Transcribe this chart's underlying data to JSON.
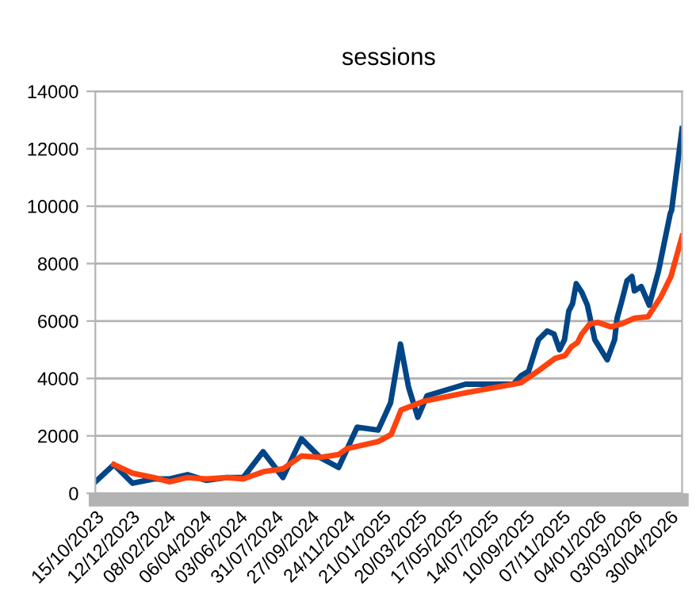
{
  "chart_data": {
    "type": "line",
    "title": "sessions",
    "xlim": [
      "2023-10-15",
      "2026-05-20"
    ],
    "ylim": [
      0,
      14000
    ],
    "yticks": [
      0,
      2000,
      4000,
      6000,
      8000,
      10000,
      12000,
      14000
    ],
    "xticks": [
      {
        "value": "2023-10-15",
        "label": "15/10/2023"
      },
      {
        "value": "2023-12-12",
        "label": "12/12/2023"
      },
      {
        "value": "2024-02-08",
        "label": "08/02/2024"
      },
      {
        "value": "2024-04-06",
        "label": "06/04/2024"
      },
      {
        "value": "2024-06-03",
        "label": "03/06/2024"
      },
      {
        "value": "2024-07-31",
        "label": "31/07/2024"
      },
      {
        "value": "2024-09-27",
        "label": "27/09/2024"
      },
      {
        "value": "2024-11-24",
        "label": "24/11/2024"
      },
      {
        "value": "2025-01-21",
        "label": "21/01/2025"
      },
      {
        "value": "2025-03-20",
        "label": "20/03/2025"
      },
      {
        "value": "2025-05-17",
        "label": "17/05/2025"
      },
      {
        "value": "2025-07-14",
        "label": "14/07/2025"
      },
      {
        "value": "2025-09-10",
        "label": "10/09/2025"
      },
      {
        "value": "2025-11-07",
        "label": "07/11/2025"
      },
      {
        "value": "2026-01-04",
        "label": "04/01/2026"
      },
      {
        "value": "2026-03-03",
        "label": "03/03/2026"
      },
      {
        "value": "2026-04-30",
        "label": "30/04/2026"
      }
    ],
    "grid": "y",
    "legend": false,
    "marker": "none",
    "line_style": "solid",
    "series": [
      {
        "color": "#004586",
        "x": [
          "2023-10-15",
          "2023-11-14",
          "2023-12-14",
          "2024-01-17",
          "2024-02-12",
          "2024-03-12",
          "2024-04-11",
          "2024-05-15",
          "2024-06-10",
          "2024-07-12",
          "2024-08-13",
          "2024-09-12",
          "2024-10-12",
          "2024-11-11",
          "2024-12-11",
          "2025-01-14",
          "2025-02-03",
          "2025-02-19",
          "2025-03-04",
          "2025-03-19",
          "2025-04-03",
          "2025-06-04",
          "2025-08-20",
          "2025-09-02",
          "2025-09-14",
          "2025-09-30",
          "2025-10-14",
          "2025-10-25",
          "2025-11-03",
          "2025-11-11",
          "2025-11-18",
          "2025-11-24",
          "2025-11-30",
          "2025-12-09",
          "2025-12-18",
          "2025-12-30",
          "2026-01-19",
          "2026-01-31",
          "2026-02-04",
          "2026-02-11",
          "2026-02-20",
          "2026-02-28",
          "2026-03-04",
          "2026-03-15",
          "2026-03-28",
          "2026-04-12",
          "2026-04-20",
          "2026-05-01",
          "2026-05-03",
          "2026-05-20"
        ],
        "values": [
          400,
          1000,
          350,
          500,
          500,
          650,
          450,
          550,
          550,
          1450,
          550,
          1900,
          1250,
          900,
          2300,
          2200,
          3150,
          5200,
          3700,
          2650,
          3400,
          3800,
          3800,
          4100,
          4250,
          5350,
          5650,
          5550,
          5000,
          5350,
          6350,
          6600,
          7300,
          7000,
          6550,
          5350,
          4650,
          5350,
          6100,
          6650,
          7400,
          7550,
          7050,
          7200,
          6550,
          7750,
          8600,
          9750,
          9850,
          12700
        ]
      },
      {
        "color": "#ff420e",
        "x": [
          "2023-11-14",
          "2023-12-14",
          "2024-01-17",
          "2024-02-12",
          "2024-03-12",
          "2024-04-11",
          "2024-05-15",
          "2024-06-10",
          "2024-07-12",
          "2024-08-13",
          "2024-09-12",
          "2024-10-12",
          "2024-11-11",
          "2024-11-24",
          "2025-01-14",
          "2025-02-04",
          "2025-02-20",
          "2025-03-28",
          "2025-06-04",
          "2025-08-20",
          "2025-09-02",
          "2025-10-02",
          "2025-10-27",
          "2025-11-12",
          "2025-11-22",
          "2025-12-02",
          "2025-12-09",
          "2025-12-22",
          "2026-01-04",
          "2026-01-25",
          "2026-02-11",
          "2026-03-04",
          "2026-03-26",
          "2026-04-16",
          "2026-05-02",
          "2026-05-20"
        ],
        "values": [
          1000,
          700,
          550,
          400,
          550,
          500,
          550,
          500,
          750,
          850,
          1300,
          1250,
          1350,
          1550,
          1800,
          2050,
          2900,
          3200,
          3500,
          3800,
          3850,
          4300,
          4700,
          4800,
          5100,
          5250,
          5550,
          5900,
          5950,
          5800,
          5900,
          6100,
          6150,
          6850,
          7550,
          8950
        ]
      }
    ]
  }
}
